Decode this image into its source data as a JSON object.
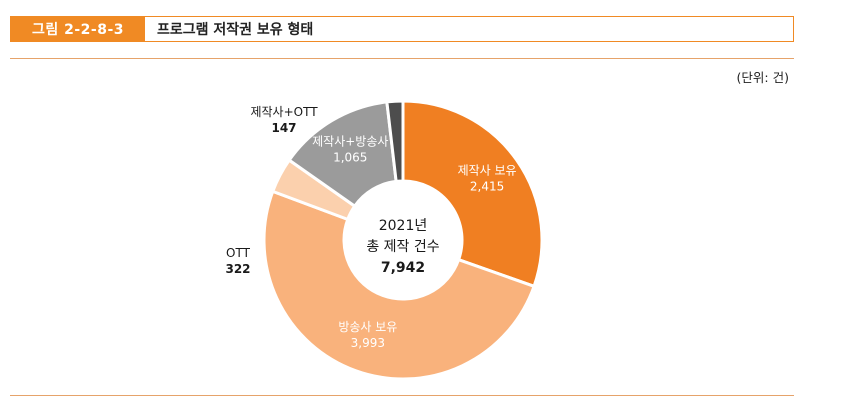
{
  "header": {
    "figure_label": "그림 2-2-8-3",
    "title": "프로그램 저작권 보유 형태"
  },
  "unit_label": "(단위: 건)",
  "center": {
    "year": "2021년",
    "caption": "총 제작 건수",
    "total": "7,942"
  },
  "colors": {
    "accent": "#f08a24",
    "total_text": "#e8791e"
  },
  "chart_data": {
    "type": "pie",
    "subtype": "donut",
    "title": "프로그램 저작권 보유 형태",
    "unit": "건",
    "start": "top, clockwise",
    "slices": [
      {
        "label": "제작사 보유",
        "value": 2415,
        "value_label": "2,415",
        "color": "#f07f22",
        "text_color": "#ffffff",
        "label_side": "inside"
      },
      {
        "label": "방송사 보유",
        "value": 3993,
        "value_label": "3,993",
        "color": "#f9b27c",
        "text_color": "#ffffff",
        "label_side": "inside"
      },
      {
        "label": "OTT",
        "value": 322,
        "value_label": "322",
        "color": "#fbd0ad",
        "text_color": "#1a1a1a",
        "label_side": "outside"
      },
      {
        "label": "제작사+방송사",
        "value": 1065,
        "value_label": "1,065",
        "color": "#9b9b9b",
        "text_color": "#ffffff",
        "label_side": "inside"
      },
      {
        "label": "제작사+OTT",
        "value": 147,
        "value_label": "147",
        "color": "#4d4d4d",
        "text_color": "#1a1a1a",
        "label_side": "outside"
      }
    ]
  }
}
